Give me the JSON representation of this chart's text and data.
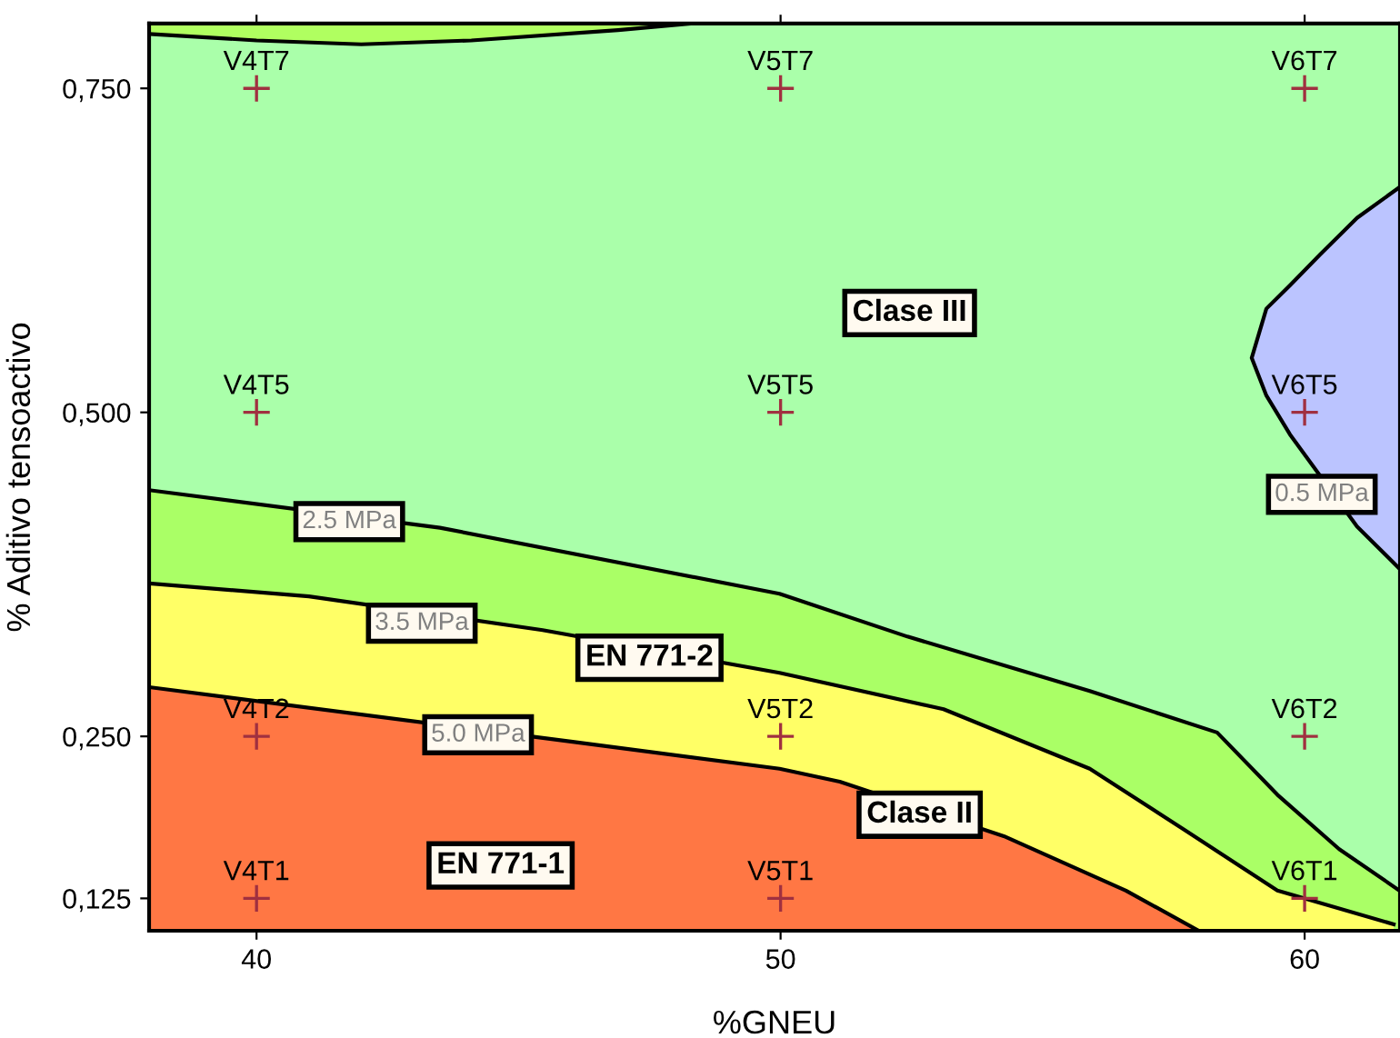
{
  "chart_data": {
    "type": "line",
    "xlabel": "%GNEU",
    "ylabel": "% Aditivo tensoactivo",
    "xlim": [
      37.95,
      61.82
    ],
    "ylim": [
      0.1,
      0.8
    ],
    "xticks": [
      40,
      50,
      60
    ],
    "yticks": [
      {
        "value": 0.125,
        "label": "0,125"
      },
      {
        "value": 0.25,
        "label": "0,250"
      },
      {
        "value": 0.5,
        "label": "0,500"
      },
      {
        "value": 0.75,
        "label": "0,750"
      }
    ],
    "series": [
      {
        "color": "#000000",
        "x": [
          37.95,
          40,
          42,
          44.1,
          46.9,
          48.3
        ],
        "values": [
          0.792,
          0.787,
          0.784,
          0.787,
          0.795,
          0.8
        ]
      },
      {
        "name": "0.5 MPa",
        "color": "#000000",
        "x": [
          61.82,
          61.0,
          60.3,
          59.72,
          59.27,
          58.99,
          59.27,
          59.72,
          61.0,
          61.82
        ],
        "values": [
          0.674,
          0.65,
          0.622,
          0.598,
          0.58,
          0.542,
          0.513,
          0.483,
          0.412,
          0.379
        ]
      },
      {
        "name": "2.5 MPa",
        "color": "#000000",
        "x": [
          37.95,
          43.5,
          49.98,
          52.42,
          55.9,
          58.33,
          59.48,
          60.66,
          61.81
        ],
        "values": [
          0.44,
          0.411,
          0.36,
          0.327,
          0.285,
          0.253,
          0.205,
          0.163,
          0.131
        ]
      },
      {
        "name": "3.5 MPa",
        "color": "#000000",
        "x": [
          37.95,
          41.0,
          45.46,
          49.98,
          53.11,
          55.9,
          57.74,
          59.48,
          61.7
        ],
        "values": [
          0.368,
          0.358,
          0.332,
          0.299,
          0.271,
          0.225,
          0.177,
          0.131,
          0.105
        ]
      },
      {
        "name": "5.0 MPa",
        "color": "#000000",
        "x": [
          37.95,
          46.0,
          49.98,
          51.13,
          54.26,
          56.59,
          57.98
        ],
        "values": [
          0.288,
          0.246,
          0.225,
          0.215,
          0.173,
          0.131,
          0.1
        ]
      },
      {
        "type": "scatter",
        "color": "#a03040",
        "marker": "cross",
        "x": [
          40,
          50,
          60,
          40,
          50,
          60,
          40,
          50,
          60,
          40,
          50,
          60
        ],
        "values": [
          0.75,
          0.75,
          0.75,
          0.5,
          0.5,
          0.5,
          0.25,
          0.25,
          0.25,
          0.125,
          0.125,
          0.125
        ],
        "value_labels": [
          "V4T7",
          "V5T7",
          "V6T7",
          "V4T5",
          "V5T5",
          "V6T5",
          "V4T2",
          "V5T2",
          "V6T2",
          "V4T1",
          "V5T1",
          "V6T1"
        ]
      }
    ],
    "annotations": [
      "Clase III",
      "EN 771-2",
      "Clase II",
      "EN 771-1"
    ]
  }
}
